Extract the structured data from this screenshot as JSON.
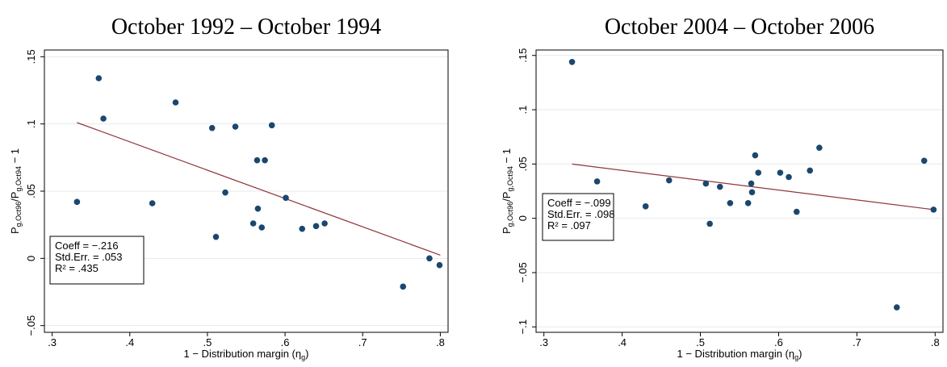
{
  "chart_data": [
    {
      "type": "scatter",
      "title": "October 1992 – October 1994",
      "x_label": {
        "parts": [
          "1 − Distribution margin (η",
          "g",
          ")"
        ]
      },
      "y_label": {
        "parts": [
          "P",
          "g,Oct96",
          "/P",
          "g,Oct94",
          " − 1"
        ]
      },
      "xlim": [
        0.29,
        0.81
      ],
      "ylim": [
        -0.055,
        0.155
      ],
      "xticks": [
        {
          "value": 0.3,
          "label": ".3"
        },
        {
          "value": 0.4,
          "label": ".4"
        },
        {
          "value": 0.5,
          "label": ".5"
        },
        {
          "value": 0.6,
          "label": ".6"
        },
        {
          "value": 0.7,
          "label": ".7"
        },
        {
          "value": 0.8,
          "label": ".8"
        }
      ],
      "yticks": [
        {
          "value": -0.05,
          "label": "−.05"
        },
        0,
        {
          "value": 0.05,
          "label": ".05"
        },
        {
          "value": 0.1,
          "label": ".1"
        },
        {
          "value": 0.15,
          "label": ".15"
        }
      ],
      "grid": true,
      "series": [
        {
          "color": "#1a476f",
          "x": [
            0.332,
            0.36,
            0.366,
            0.429,
            0.459,
            0.506,
            0.511,
            0.523,
            0.536,
            0.559,
            0.564,
            0.565,
            0.57,
            0.574,
            0.583,
            0.601,
            0.622,
            0.64,
            0.651,
            0.752,
            0.786,
            0.799
          ],
          "values": [
            0.042,
            0.134,
            0.104,
            0.041,
            0.116,
            0.097,
            0.016,
            0.049,
            0.098,
            0.026,
            0.073,
            0.037,
            0.023,
            0.073,
            0.099,
            0.045,
            0.022,
            0.024,
            0.026,
            -0.021,
            0,
            -0.005
          ]
        }
      ],
      "fit_line": {
        "color": "#90353b",
        "x": [
          0.332,
          0.8
        ],
        "values": [
          0.101,
          0.0024
        ]
      },
      "annotations": [
        "Coeff = −.216",
        "Std.Err. = .053",
        "R² = .435"
      ]
    },
    {
      "type": "scatter",
      "title": "October 2004 – October 2006",
      "x_label": {
        "parts": [
          "1 − Distribution margin (η",
          "g",
          ")"
        ]
      },
      "y_label": {
        "parts": [
          "P",
          "g,Oct96",
          "/P",
          "g,Oct94",
          " − 1"
        ]
      },
      "xlim": [
        0.29,
        0.81
      ],
      "ylim": [
        -0.105,
        0.155
      ],
      "xticks": [
        {
          "value": 0.3,
          "label": ".3"
        },
        {
          "value": 0.4,
          "label": ".4"
        },
        {
          "value": 0.5,
          "label": ".5"
        },
        {
          "value": 0.6,
          "label": ".6"
        },
        {
          "value": 0.7,
          "label": ".7"
        },
        {
          "value": 0.8,
          "label": ".8"
        }
      ],
      "yticks": [
        {
          "value": -0.1,
          "label": "−.1"
        },
        {
          "value": -0.05,
          "label": "−.05"
        },
        0,
        {
          "value": 0.05,
          "label": ".05"
        },
        {
          "value": 0.1,
          "label": ".1"
        },
        {
          "value": 0.15,
          "label": ".15"
        }
      ],
      "grid": true,
      "series": [
        {
          "color": "#1a476f",
          "x": [
            0.336,
            0.368,
            0.43,
            0.46,
            0.507,
            0.512,
            0.525,
            0.538,
            0.561,
            0.565,
            0.566,
            0.57,
            0.574,
            0.602,
            0.613,
            0.623,
            0.64,
            0.652,
            0.751,
            0.786,
            0.798
          ],
          "values": [
            0.144,
            0.034,
            0.011,
            0.035,
            0.032,
            -0.005,
            0.029,
            0.014,
            0.014,
            0.032,
            0.024,
            0.058,
            0.042,
            0.042,
            0.038,
            0.006,
            0.044,
            0.065,
            -0.082,
            0.053,
            0.008
          ]
        }
      ],
      "fit_line": {
        "color": "#90353b",
        "x": [
          0.336,
          0.798
        ],
        "values": [
          0.05,
          0.008
        ]
      },
      "annotations": [
        "Coeff = −.099",
        "Std.Err. = .098",
        "R² = .097"
      ]
    }
  ]
}
